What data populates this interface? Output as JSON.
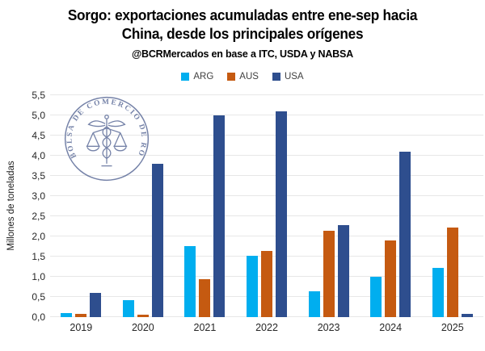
{
  "header": {
    "title_line1": "Sorgo: exportaciones acumuladas entre ene-sep hacia",
    "title_line2": "China, desde los principales orígenes",
    "subtitle": "@BCRMercados en base a ITC, USDA y NABSA"
  },
  "watermark": {
    "text": "BOLSA DE COMERCIO DE ROSARIO",
    "color": "#5D6D99"
  },
  "chart_data": {
    "type": "bar",
    "title": "Sorgo: exportaciones acumuladas entre ene-sep hacia China, desde los principales orígenes",
    "subtitle": "@BCRMercados en base a ITC, USDA y NABSA",
    "categories": [
      "2019",
      "2020",
      "2021",
      "2022",
      "2023",
      "2024",
      "2025"
    ],
    "series": [
      {
        "name": "ARG",
        "color": "#00AEEF",
        "values": [
          0.1,
          0.42,
          1.77,
          1.52,
          0.65,
          1.0,
          1.22
        ]
      },
      {
        "name": "AUS",
        "color": "#C55A11",
        "values": [
          0.08,
          0.07,
          0.95,
          1.64,
          2.14,
          1.9,
          2.22
        ]
      },
      {
        "name": "USA",
        "color": "#2E4E8E",
        "values": [
          0.6,
          3.8,
          5.0,
          5.1,
          2.28,
          4.1,
          0.08
        ]
      }
    ],
    "xlabel": "",
    "ylabel": "Millones de toneladas",
    "ylim": [
      0,
      5.5
    ],
    "ytick_step": 0.5,
    "ytick_labels": [
      "0,0",
      "0,5",
      "1,0",
      "1,5",
      "2,0",
      "2,5",
      "3,0",
      "3,5",
      "4,0",
      "4,5",
      "5,0",
      "5,5"
    ],
    "grid": true,
    "gridline_color": "#E7E7E7",
    "legend_position": "top",
    "axis_text_color": "#262626",
    "background_color": "#FFFFFF"
  }
}
